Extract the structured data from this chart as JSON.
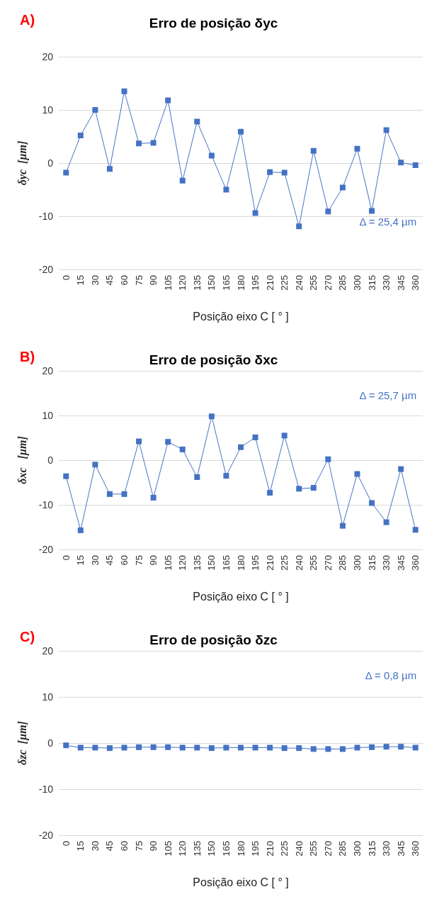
{
  "chart_data": [
    {
      "type": "line",
      "title": "Erro de posição δyc",
      "xlabel": "Posição eixo C [ ° ]",
      "ylabel": "δyc  [µm]",
      "annotations": [
        "A)",
        "Δ = 25,4 µm"
      ],
      "categories": [
        "0",
        "15",
        "30",
        "45",
        "60",
        "75",
        "90",
        "105",
        "120",
        "135",
        "150",
        "165",
        "180",
        "195",
        "210",
        "225",
        "240",
        "255",
        "270",
        "285",
        "300",
        "315",
        "330",
        "345",
        "360"
      ],
      "series": [
        {
          "color": "#4472c4",
          "values": [
            -1.8,
            5.2,
            10,
            -1.1,
            13.5,
            3.7,
            3.8,
            11.8,
            -3.3,
            7.8,
            1.4,
            -5.0,
            5.9,
            -9.4,
            -1.7,
            -1.8,
            -11.9,
            2.3,
            -9.1,
            -4.6,
            2.7,
            -9.0,
            6.2,
            0.1,
            -0.4
          ]
        }
      ],
      "ylim": [
        -20,
        20
      ],
      "yticks": [
        -20,
        -10,
        0,
        10,
        20
      ],
      "grid": "y",
      "marker": "square",
      "line_style": "solid"
    },
    {
      "type": "line",
      "title": "Erro de posição δxc",
      "xlabel": "Posição eixo C [ ° ]",
      "ylabel": "δxc   [µm]",
      "annotations": [
        "B)",
        "Δ = 25,7 µm"
      ],
      "categories": [
        "0",
        "15",
        "30",
        "45",
        "60",
        "75",
        "90",
        "105",
        "120",
        "135",
        "150",
        "165",
        "180",
        "195",
        "210",
        "225",
        "240",
        "255",
        "270",
        "285",
        "300",
        "315",
        "330",
        "345",
        "360"
      ],
      "series": [
        {
          "color": "#4472c4",
          "values": [
            -3.6,
            -15.7,
            -1.0,
            -7.6,
            -7.6,
            4.2,
            -8.4,
            4.1,
            2.4,
            -3.8,
            9.8,
            -3.5,
            2.9,
            5.1,
            -7.3,
            5.5,
            -6.4,
            -6.2,
            0.2,
            -14.7,
            -3.1,
            -9.6,
            -13.9,
            -2.0,
            -15.6
          ]
        }
      ],
      "ylim": [
        -20,
        20
      ],
      "yticks": [
        -20,
        -10,
        0,
        10,
        20
      ],
      "grid": "y",
      "marker": "square",
      "line_style": "solid"
    },
    {
      "type": "line",
      "title": "Erro de posição δzc",
      "xlabel": "Posição eixo C [ ° ]",
      "ylabel": "δzc  [µm]",
      "annotations": [
        "C)",
        "Δ = 0,8 µm"
      ],
      "categories": [
        "0",
        "15",
        "30",
        "45",
        "60",
        "75",
        "90",
        "105",
        "120",
        "135",
        "150",
        "165",
        "180",
        "195",
        "210",
        "225",
        "240",
        "255",
        "270",
        "285",
        "300",
        "315",
        "330",
        "345",
        "360"
      ],
      "series": [
        {
          "color": "#4472c4",
          "values": [
            -0.5,
            -1.0,
            -1.0,
            -1.1,
            -1.0,
            -0.9,
            -0.9,
            -0.9,
            -1.0,
            -1.0,
            -1.1,
            -1.0,
            -1.0,
            -1.0,
            -1.0,
            -1.1,
            -1.1,
            -1.3,
            -1.3,
            -1.3,
            -1.0,
            -0.9,
            -0.8,
            -0.8,
            -1.0
          ]
        }
      ],
      "ylim": [
        -20,
        20
      ],
      "yticks": [
        -20,
        -10,
        0,
        10,
        20
      ],
      "grid": "y",
      "marker": "square",
      "line_style": "solid"
    }
  ]
}
